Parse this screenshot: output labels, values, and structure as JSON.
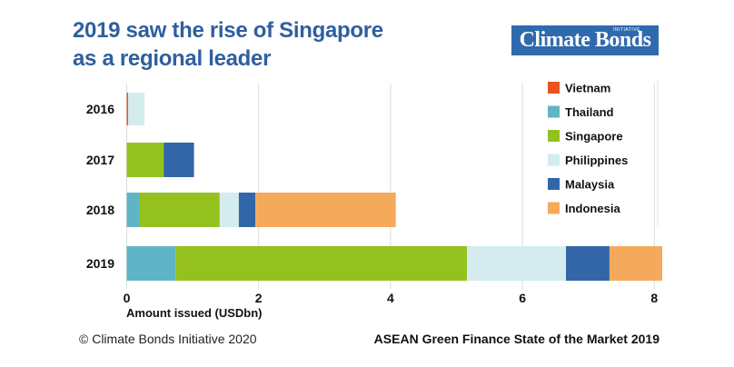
{
  "header": {
    "title_line1": "2019 saw the rise of Singapore",
    "title_line2": "as a regional leader",
    "logo_text": "Climate Bonds",
    "logo_superscript": "INITIATIVE"
  },
  "footer": {
    "copyright": "© Climate Bonds Initiative 2020",
    "report_title": "ASEAN Green Finance State of the Market 2019"
  },
  "colors": {
    "title": "#2f5f9e",
    "logo_bg": "#2f6aae",
    "grid": "#dcdcdc"
  },
  "chart_data": {
    "type": "bar",
    "orientation": "horizontal",
    "stacked": true,
    "title": "2019 saw the rise of Singapore as a regional leader",
    "xlabel": "Amount issued (USDbn)",
    "ylabel": "",
    "xlim": [
      0,
      8.1
    ],
    "xticks": [
      0,
      2,
      4,
      6,
      8
    ],
    "grid": true,
    "legend_position": "right",
    "categories": [
      "2016",
      "2017",
      "2018",
      "2019"
    ],
    "series": [
      {
        "name": "Vietnam",
        "color": "#e8531f",
        "values": [
          0.02,
          0,
          0,
          0
        ]
      },
      {
        "name": "Thailand",
        "color": "#5fb5c6",
        "values": [
          0,
          0,
          0.2,
          0.74
        ]
      },
      {
        "name": "Singapore",
        "color": "#95c11f",
        "values": [
          0,
          0.56,
          1.21,
          4.42
        ]
      },
      {
        "name": "Philippines",
        "color": "#d5ecee",
        "values": [
          0.25,
          0,
          0.29,
          1.5
        ]
      },
      {
        "name": "Malaysia",
        "color": "#3266a8",
        "values": [
          0,
          0.46,
          0.25,
          0.66
        ]
      },
      {
        "name": "Indonesia",
        "color": "#f5aa5b",
        "values": [
          0,
          0,
          2.13,
          0.8
        ]
      }
    ]
  }
}
